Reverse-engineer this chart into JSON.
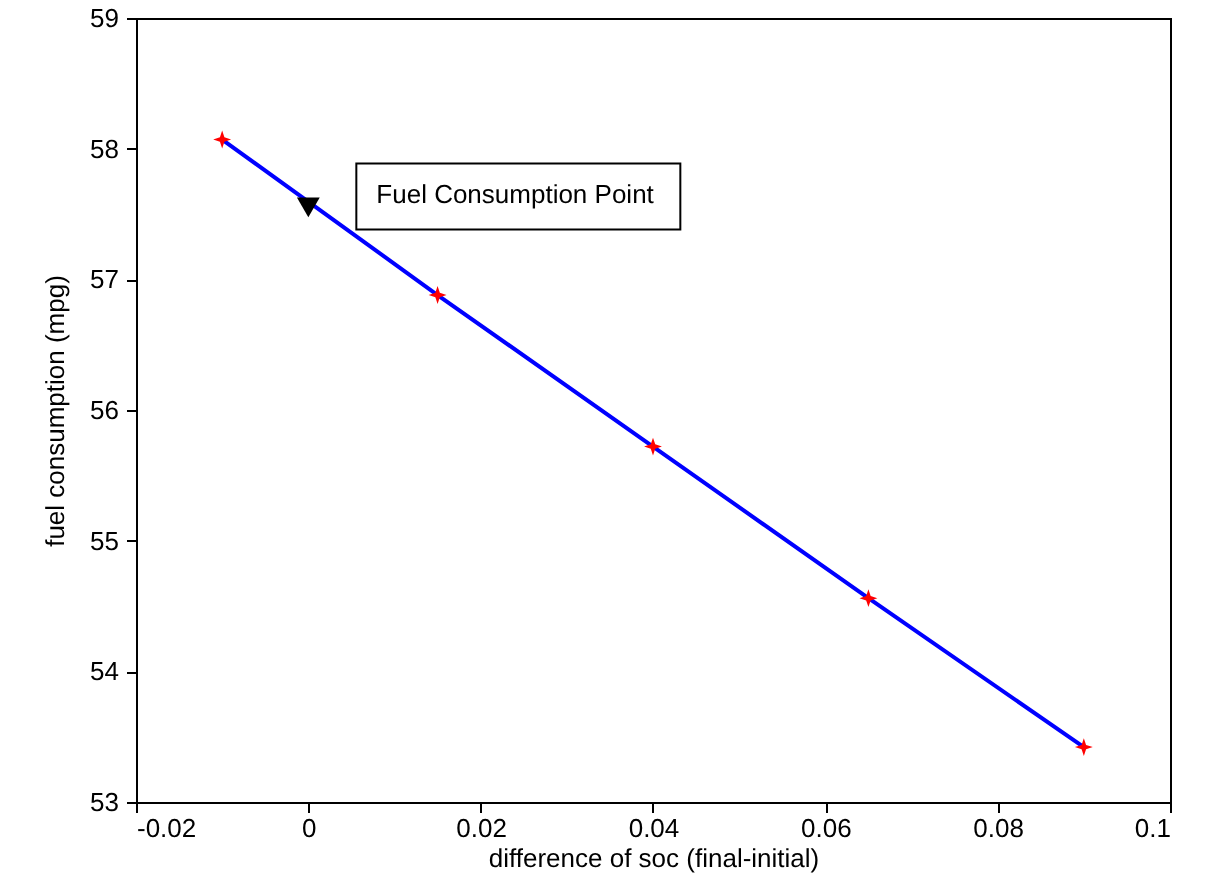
{
  "chart_data": {
    "type": "line",
    "xlabel": "difference of soc (final-initial)",
    "ylabel": "fuel consumption (mpg)",
    "x": [
      -0.01,
      0.015,
      0.04,
      0.065,
      0.09
    ],
    "series": [
      {
        "type": "line",
        "color": "#0000ff",
        "marker": "none",
        "values": [
          58.07,
          56.88,
          55.72,
          54.56,
          53.42
        ]
      },
      {
        "type": "scatter",
        "color": "#ff0000",
        "marker": "star",
        "values": [
          58.07,
          56.88,
          55.72,
          54.56,
          53.42
        ]
      },
      {
        "type": "scatter",
        "color": "#000000",
        "marker": "triangle",
        "x": [
          0
        ],
        "values": [
          57.55
        ]
      }
    ],
    "annotations": [
      {
        "text": "Fuel Consumption Point",
        "x": 0,
        "y": 57.55
      }
    ],
    "xlim": [
      -0.02,
      0.1
    ],
    "xticks": [
      -0.02,
      0,
      0.02,
      0.04,
      0.06,
      0.08,
      0.1
    ],
    "ylim": [
      53,
      59
    ],
    "yticks": [
      53,
      54,
      55,
      56,
      57,
      58,
      59
    ],
    "grid": false
  }
}
